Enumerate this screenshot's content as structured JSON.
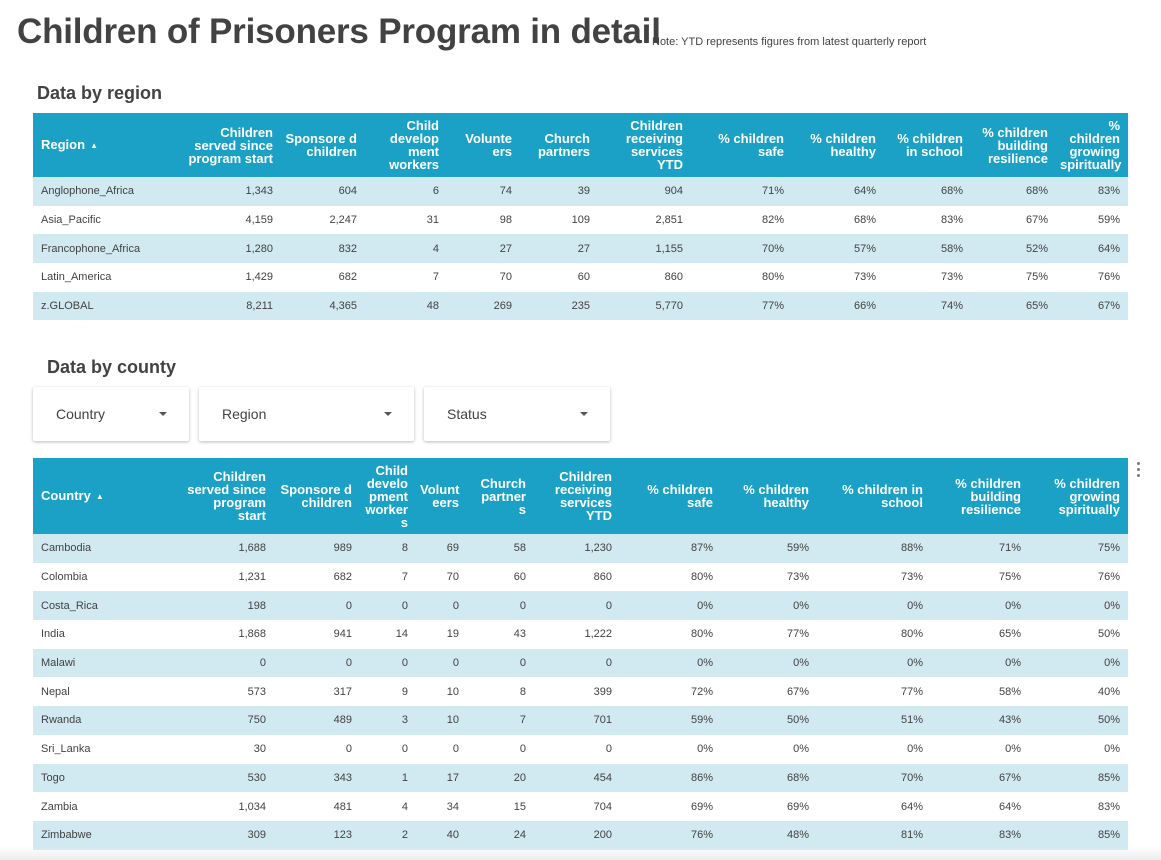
{
  "page": {
    "title": "Children of Prisoners Program in detail",
    "note": "Note: YTD represents figures from latest quarterly report"
  },
  "region_section": {
    "title": "Data by region",
    "sort_icon": "sort-ascending-icon",
    "columns": [
      "Region",
      "Children served since program start",
      "Sponsore d children",
      "Child develop ment workers",
      "Volunte ers",
      "Church partners",
      "Children receiving services YTD",
      "% children safe",
      "% children healthy",
      "% children in school",
      "% children building resilience",
      "% children growing spiritually"
    ],
    "rows": [
      [
        "Anglophone_Africa",
        "1,343",
        "604",
        "6",
        "74",
        "39",
        "904",
        "71%",
        "64%",
        "68%",
        "68%",
        "83%"
      ],
      [
        "Asia_Pacific",
        "4,159",
        "2,247",
        "31",
        "98",
        "109",
        "2,851",
        "82%",
        "68%",
        "83%",
        "67%",
        "59%"
      ],
      [
        "Francophone_Africa",
        "1,280",
        "832",
        "4",
        "27",
        "27",
        "1,155",
        "70%",
        "57%",
        "58%",
        "52%",
        "64%"
      ],
      [
        "Latin_America",
        "1,429",
        "682",
        "7",
        "70",
        "60",
        "860",
        "80%",
        "73%",
        "73%",
        "75%",
        "76%"
      ],
      [
        "z.GLOBAL",
        "8,211",
        "4,365",
        "48",
        "269",
        "235",
        "5,770",
        "77%",
        "66%",
        "74%",
        "65%",
        "67%"
      ]
    ]
  },
  "county_section": {
    "title": "Data by county",
    "filters": [
      {
        "label": "Country",
        "icon": "chevron-down-icon"
      },
      {
        "label": "Region",
        "icon": "chevron-down-icon"
      },
      {
        "label": "Status",
        "icon": "chevron-down-icon"
      }
    ],
    "menu_icon": "more-vert-icon",
    "sort_icon": "sort-ascending-icon",
    "columns": [
      "Country",
      "Children served since program start",
      "Sponsore d children",
      "Child develo pment worker s",
      "Volunt eers",
      "Church partner s",
      "Children receiving services YTD",
      "% children safe",
      "% children healthy",
      "% children in school",
      "% children building resilience",
      "% children growing spiritually"
    ],
    "rows": [
      [
        "Cambodia",
        "1,688",
        "989",
        "8",
        "69",
        "58",
        "1,230",
        "87%",
        "59%",
        "88%",
        "71%",
        "75%"
      ],
      [
        "Colombia",
        "1,231",
        "682",
        "7",
        "70",
        "60",
        "860",
        "80%",
        "73%",
        "73%",
        "75%",
        "76%"
      ],
      [
        "Costa_Rica",
        "198",
        "0",
        "0",
        "0",
        "0",
        "0",
        "0%",
        "0%",
        "0%",
        "0%",
        "0%"
      ],
      [
        "India",
        "1,868",
        "941",
        "14",
        "19",
        "43",
        "1,222",
        "80%",
        "77%",
        "80%",
        "65%",
        "50%"
      ],
      [
        "Malawi",
        "0",
        "0",
        "0",
        "0",
        "0",
        "0",
        "0%",
        "0%",
        "0%",
        "0%",
        "0%"
      ],
      [
        "Nepal",
        "573",
        "317",
        "9",
        "10",
        "8",
        "399",
        "72%",
        "67%",
        "77%",
        "58%",
        "40%"
      ],
      [
        "Rwanda",
        "750",
        "489",
        "3",
        "10",
        "7",
        "701",
        "59%",
        "50%",
        "51%",
        "43%",
        "50%"
      ],
      [
        "Sri_Lanka",
        "30",
        "0",
        "0",
        "0",
        "0",
        "0",
        "0%",
        "0%",
        "0%",
        "0%",
        "0%"
      ],
      [
        "Togo",
        "530",
        "343",
        "1",
        "17",
        "20",
        "454",
        "86%",
        "68%",
        "70%",
        "67%",
        "85%"
      ],
      [
        "Zambia",
        "1,034",
        "481",
        "4",
        "34",
        "15",
        "704",
        "69%",
        "69%",
        "64%",
        "64%",
        "83%"
      ],
      [
        "Zimbabwe",
        "309",
        "123",
        "2",
        "40",
        "24",
        "200",
        "76%",
        "48%",
        "81%",
        "83%",
        "85%"
      ]
    ]
  }
}
